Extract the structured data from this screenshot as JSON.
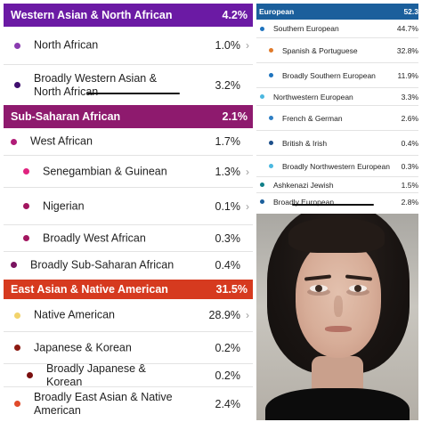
{
  "left_panel": {
    "sections": [
      {
        "name": "Western Asian & North African",
        "percent": "4.2%",
        "color": "#6b1aa4",
        "rows": [
          {
            "label": "North African",
            "percent": "1.0%",
            "dot_color": "#8a3bb0",
            "chevron": "›"
          },
          {
            "label": "Broadly Western Asian & North African",
            "percent": "3.2%",
            "dot_color": "#3f0f6e",
            "chevron": ""
          }
        ]
      },
      {
        "name": "Sub-Saharan African",
        "percent": "2.1%",
        "color": "#8e1a6e",
        "rows": [
          {
            "label": "West African",
            "percent": "1.7%",
            "dot_color": "#b01c78",
            "chevron": ""
          },
          {
            "label": "Senegambian & Guinean",
            "percent": "1.3%",
            "dot_color": "#e0237f",
            "chevron": "›"
          },
          {
            "label": "Nigerian",
            "percent": "0.1%",
            "dot_color": "#a2155f",
            "chevron": "›"
          },
          {
            "label": "Broadly West African",
            "percent": "0.3%",
            "dot_color": "#a2155f",
            "chevron": ""
          },
          {
            "label": "Broadly Sub-Saharan African",
            "percent": "0.4%",
            "dot_color": "#7a1360",
            "chevron": ""
          }
        ]
      },
      {
        "name": "East Asian & Native American",
        "percent": "31.5%",
        "color": "#d63a1f",
        "rows": [
          {
            "label": "Native American",
            "percent": "28.9%",
            "dot_color": "#f2d36b",
            "chevron": "›"
          },
          {
            "label": "Japanese & Korean",
            "percent": "0.2%",
            "dot_color": "#8c1a12",
            "chevron": ""
          },
          {
            "label": "Broadly Japanese & Korean",
            "percent": "0.2%",
            "dot_color": "#7a0f0f",
            "chevron": ""
          },
          {
            "label": "Broadly East Asian & Native American",
            "percent": "2.4%",
            "dot_color": "#e04a2a",
            "chevron": ""
          }
        ]
      }
    ]
  },
  "right_panel": {
    "section": {
      "name": "European",
      "percent": "52.3",
      "color": "#1b5f9c",
      "rows": [
        {
          "label": "Southern European",
          "percent": "44.7%",
          "dot_color": "#1e73be"
        },
        {
          "label": "Spanish & Portuguese",
          "percent": "32.8%",
          "dot_color": "#e07a2a"
        },
        {
          "label": "Broadly Southern European",
          "percent": "11.9%",
          "dot_color": "#1e73be"
        },
        {
          "label": "Northwestern European",
          "percent": "3.3%",
          "dot_color": "#4bb8e0"
        },
        {
          "label": "French & German",
          "percent": "2.6%",
          "dot_color": "#2e7fc4"
        },
        {
          "label": "British & Irish",
          "percent": "0.4%",
          "dot_color": "#1c4f8a"
        },
        {
          "label": "Broadly Northwestern European",
          "percent": "0.3%",
          "dot_color": "#4bb8e0"
        },
        {
          "label": "Ashkenazi Jewish",
          "percent": "1.5%",
          "dot_color": "#0f7f88"
        },
        {
          "label": "Broadly European",
          "percent": "2.8%",
          "dot_color": "#1b5f9c"
        }
      ]
    }
  }
}
